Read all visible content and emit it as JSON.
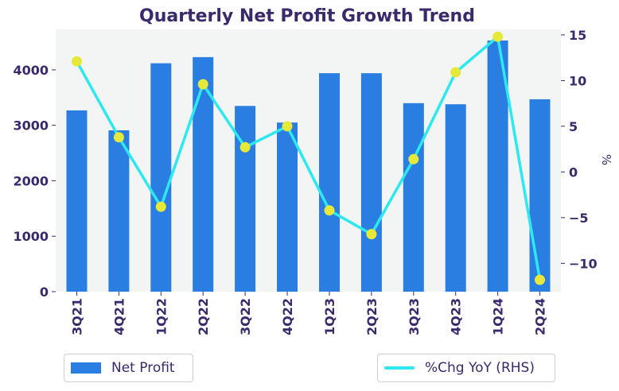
{
  "chart_data": {
    "type": "bar+line",
    "title": "Quarterly Net Profit Growth Trend",
    "categories": [
      "3Q21",
      "4Q21",
      "1Q22",
      "2Q22",
      "3Q22",
      "4Q22",
      "1Q23",
      "2Q23",
      "3Q23",
      "4Q23",
      "1Q24",
      "2Q24"
    ],
    "series": [
      {
        "name": "Net Profit",
        "type": "bar",
        "axis": "left",
        "color": "#2a7de1",
        "values": [
          3270,
          2910,
          4120,
          4230,
          3350,
          3050,
          3940,
          3940,
          3400,
          3380,
          4530,
          3470
        ]
      },
      {
        "name": "%Chg YoY (RHS)",
        "type": "line",
        "axis": "right",
        "color": "#2ee8f0",
        "marker_color": "#e6e83a",
        "values": [
          12.1,
          3.8,
          -3.8,
          9.6,
          2.7,
          5.0,
          -4.2,
          -6.8,
          1.4,
          10.9,
          14.8,
          -11.8
        ]
      }
    ],
    "left_axis": {
      "ticks": [
        0,
        1000,
        2000,
        3000,
        4000
      ],
      "ylim": [
        0,
        4730
      ],
      "label": ""
    },
    "right_axis": {
      "ticks": [
        -10,
        -5,
        0,
        5,
        10,
        15
      ],
      "ylim": [
        -13.1,
        15.6
      ],
      "label": "%"
    },
    "plot_background": "#f3f5f4",
    "legend_placement": "bottom"
  }
}
